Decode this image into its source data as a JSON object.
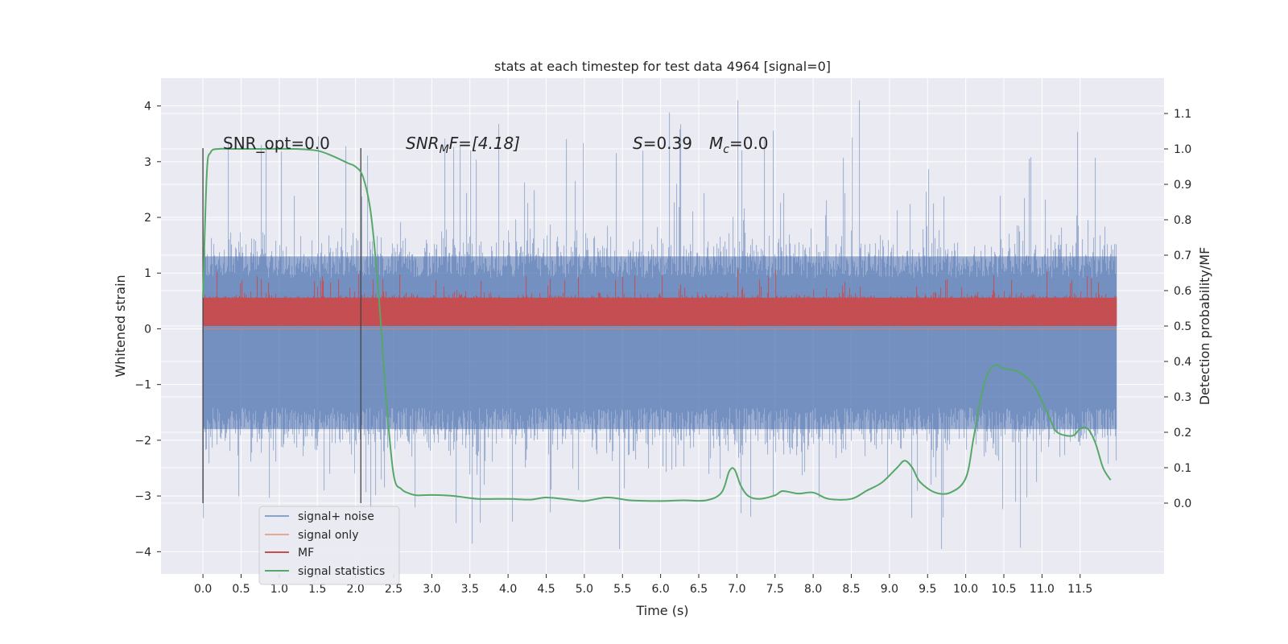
{
  "chart_data": {
    "type": "line",
    "title": "stats at each timestep for test data 4964 [signal=0]",
    "xlabel": "Time (s)",
    "ylabel_left": "Whitened strain",
    "ylabel_right": "Detection probability/MF",
    "xlim": [
      -0.55,
      12.6
    ],
    "ylim_left": [
      -4.4,
      4.5
    ],
    "ylim_right": [
      -0.2,
      1.2
    ],
    "xticks": [
      "0.0",
      "0.5",
      "1.0",
      "1.5",
      "2.0",
      "2.5",
      "3.0",
      "3.5",
      "4.0",
      "4.5",
      "5.0",
      "5.5",
      "6.0",
      "6.5",
      "7.0",
      "7.5",
      "8.0",
      "8.5",
      "9.0",
      "9.5",
      "10.0",
      "10.5",
      "11.0",
      "11.5"
    ],
    "yticks_left": [
      "4",
      "3",
      "2",
      "1",
      "0",
      "−1",
      "−2",
      "−3",
      "−4"
    ],
    "yticks_right": [
      "1.1",
      "1.0",
      "0.9",
      "0.8",
      "0.7",
      "0.6",
      "0.5",
      "0.4",
      "0.3",
      "0.2",
      "0.1",
      "0.0"
    ],
    "grid": true,
    "legend_placement": "lower-left",
    "colors": {
      "noise": "#4c72b0",
      "signal": "#dd8452",
      "mf": "#c44e52",
      "stat": "#55a868",
      "background": "#eaeaf2",
      "grid": "#ffffff"
    },
    "annotations": {
      "snr_opt": "SNR_opt=0.0",
      "snr_mf_sym": "SNR",
      "snr_mf_sub": "M",
      "snr_mf_rest": "F=[4.18]",
      "s_sym": "S",
      "s_val": "=0.39",
      "mc_sym": "M",
      "mc_sub": "c",
      "mc_val": "=0.0"
    },
    "window_markers_x": [
      0.0,
      2.07
    ],
    "series": [
      {
        "name": "signal+ noise",
        "axis": "left",
        "kind": "noise-band",
        "x_range": [
          0.0,
          11.98
        ],
        "typical_range": [
          -1.8,
          1.3
        ],
        "extremes": [
          -3.95,
          4.1
        ]
      },
      {
        "name": "signal only",
        "axis": "left",
        "kind": "flat",
        "x_range": [
          0.0,
          11.98
        ],
        "value": 0.0
      },
      {
        "name": "MF",
        "axis": "right",
        "kind": "noise-band",
        "x_range": [
          0.0,
          11.98
        ],
        "typical_range": [
          0.5,
          0.58
        ],
        "extremes": [
          0.5,
          0.66
        ]
      },
      {
        "name": "signal statistics",
        "axis": "right",
        "kind": "line",
        "x": [
          0.0,
          0.05,
          0.1,
          0.2,
          0.4,
          0.8,
          1.2,
          1.5,
          1.7,
          1.9,
          2.0,
          2.1,
          2.2,
          2.3,
          2.4,
          2.5,
          2.6,
          2.7,
          2.8,
          3.0,
          3.3,
          3.6,
          4.0,
          4.3,
          4.5,
          4.8,
          5.0,
          5.3,
          5.6,
          6.0,
          6.3,
          6.6,
          6.8,
          6.9,
          6.97,
          7.05,
          7.15,
          7.3,
          7.5,
          7.6,
          7.8,
          8.0,
          8.2,
          8.5,
          8.7,
          8.9,
          9.1,
          9.2,
          9.3,
          9.4,
          9.6,
          9.8,
          10.0,
          10.1,
          10.2,
          10.3,
          10.4,
          10.5,
          10.7,
          10.9,
          11.1,
          11.2,
          11.4,
          11.5,
          11.6,
          11.7,
          11.8,
          11.9
        ],
        "y": [
          0.58,
          0.93,
          0.99,
          1.0,
          1.0,
          1.0,
          1.0,
          0.995,
          0.98,
          0.96,
          0.95,
          0.92,
          0.82,
          0.6,
          0.3,
          0.08,
          0.04,
          0.028,
          0.022,
          0.023,
          0.02,
          0.012,
          0.012,
          0.01,
          0.016,
          0.01,
          0.006,
          0.016,
          0.008,
          0.006,
          0.008,
          0.008,
          0.03,
          0.09,
          0.095,
          0.05,
          0.02,
          0.012,
          0.022,
          0.034,
          0.027,
          0.03,
          0.012,
          0.012,
          0.035,
          0.058,
          0.1,
          0.12,
          0.1,
          0.06,
          0.03,
          0.03,
          0.07,
          0.18,
          0.3,
          0.37,
          0.39,
          0.38,
          0.37,
          0.33,
          0.24,
          0.2,
          0.19,
          0.21,
          0.21,
          0.17,
          0.1,
          0.065
        ]
      }
    ]
  }
}
